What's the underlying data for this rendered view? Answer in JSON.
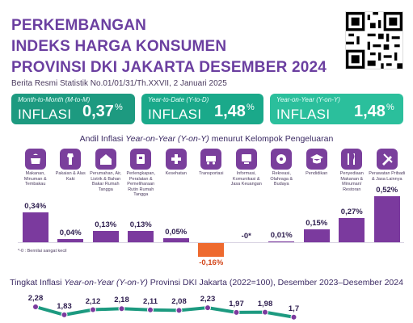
{
  "header": {
    "line1": "PERKEMBANGAN",
    "line2": "INDEKS HARGA KONSUMEN",
    "line3": "PROVINSI DKI JAKARTA DESEMBER 2024",
    "brs": "Berita Resmi Statistik No.01/01/31/Th.XXVII, 2 Januari 2025"
  },
  "cards": [
    {
      "caption": "Month-to-Month (M-to-M)",
      "label": "INFLASI",
      "value": "0,37",
      "unit": "%"
    },
    {
      "caption": "Year-to-Date (Y-to-D)",
      "label": "INFLASI",
      "value": "1,48",
      "unit": "%"
    },
    {
      "caption": "Year-on-Year (Y-on-Y)",
      "label": "INFLASI",
      "value": "1,48",
      "unit": "%"
    }
  ],
  "chart1_title_a": "Andil Inflasi ",
  "chart1_title_b": "Year-on-Year (Y-on-Y)",
  "chart1_title_c": " menurut Kelompok Pengeluaran",
  "note": "*-0 : Bernilai sangat kecil",
  "chart2_title_a": "Tingkat Inflasi ",
  "chart2_title_b": "Year-on-Year (Y-on-Y)",
  "chart2_title_c": " Provinsi DKI Jakarta (2022=100), Desember 2023–Desember 2024",
  "chart_data": [
    {
      "type": "bar",
      "categories": [
        "Makanan, Minuman & Tembakau",
        "Pakaian & Alas Kaki",
        "Perumahan, Air, Listrik & Bahan Bakar Rumah Tangga",
        "Perlengkapan, Peralatan & Pemeliharaan Rutin Rumah Tangga",
        "Kesehatan",
        "Transportasi",
        "Informasi, Komunikasi & Jasa Keuangan",
        "Rekreasi, Olahraga & Budaya",
        "Pendidikan",
        "Penyediaan Makanan & Minuman/ Restoran",
        "Perawatan Pribadi & Jasa Lainnya"
      ],
      "values": [
        0.34,
        0.04,
        0.13,
        0.13,
        0.05,
        -0.16,
        0,
        0.01,
        0.15,
        0.27,
        0.52
      ],
      "labels": [
        "0,34%",
        "0,04%",
        "0,13%",
        "0,13%",
        "0,05%",
        "-0,16%",
        "-0*",
        "0,01%",
        "0,15%",
        "0,27%",
        "0,52%"
      ],
      "icons": [
        "food-icon",
        "clothing-icon",
        "house-icon",
        "household-icon",
        "health-icon",
        "transport-icon",
        "info-icon",
        "recreation-icon",
        "education-icon",
        "restaurant-icon",
        "personal-care-icon"
      ]
    },
    {
      "type": "line",
      "values": [
        2.28,
        1.83,
        2.12,
        2.18,
        2.11,
        2.08,
        2.23,
        1.97,
        1.98,
        1.7
      ],
      "labels": [
        "2,28",
        "1,83",
        "2,12",
        "2,18",
        "2,11",
        "2,08",
        "2,23",
        "1,97",
        "1,98",
        "1,7"
      ],
      "colors": {
        "line": "#1d9a80",
        "marker": "#7b3a9e"
      }
    }
  ]
}
